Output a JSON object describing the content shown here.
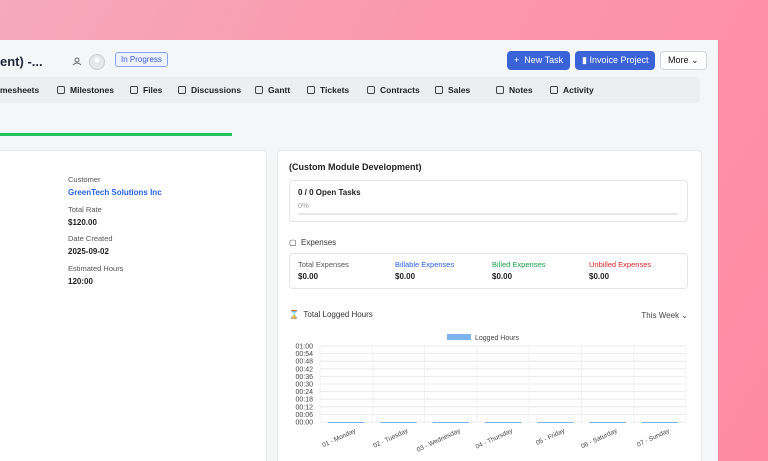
{
  "header": {
    "title": "ent) -...",
    "status": "In Progress",
    "buttons": [
      "New Task",
      "Invoice Project",
      "More"
    ]
  },
  "tabs": [
    "mesheets",
    "Milestones",
    "Files",
    "Discussions",
    "Gantt",
    "Tickets",
    "Contracts",
    "Sales",
    "Notes",
    "Activity"
  ],
  "project_info": {
    "fields": [
      {
        "label": "Customer",
        "value": "GreenTech Solutions Inc"
      },
      {
        "label": "Total Rate",
        "value": "$120.00"
      },
      {
        "label": "Date Created",
        "value": "2025-09-02"
      },
      {
        "label": "Estimated Hours",
        "value": "120:00"
      }
    ]
  },
  "overview": {
    "title": "(Custom Module Development)",
    "open_tasks": {
      "label": "0 / 0 Open Tasks",
      "percent": "0%"
    },
    "expenses": {
      "title": "Expenses",
      "items": [
        {
          "label": "Total Expenses",
          "value": "$0.00"
        },
        {
          "label": "Billable Expenses",
          "value": "$0.00"
        },
        {
          "label": "Billed Expenses",
          "value": "$0.00"
        },
        {
          "label": "Unbilled Expenses",
          "value": "$0.00"
        }
      ]
    },
    "logged_hours": {
      "title": "Total Logged Hours",
      "period": "This Week",
      "chart": {
        "type": "bar",
        "categories": [
          "01 - Monday",
          "02 - Tuesday",
          "03 - Wednesday",
          "04 - Thursday",
          "05 - Friday",
          "06 - Saturday",
          "07 - Sunday"
        ],
        "series": [
          {
            "name": "Logged Hours",
            "color": "#7cb5ec",
            "values": [
              0,
              0,
              0,
              0,
              0,
              0,
              0
            ]
          }
        ],
        "ylim": [
          0,
          1
        ],
        "yticks": [
          {
            "value": 0,
            "label": "00:00"
          },
          {
            "value": 0.1,
            "label": "00:06"
          },
          {
            "value": 0.2,
            "label": "00:12"
          },
          {
            "value": 0.3,
            "label": "00:18"
          },
          {
            "value": 0.4,
            "label": "00:24"
          },
          {
            "value": 0.5,
            "label": "00:30"
          },
          {
            "value": 0.6,
            "label": "00:36"
          },
          {
            "value": 0.7,
            "label": "00:42"
          },
          {
            "value": 0.8,
            "label": "00:48"
          },
          {
            "value": 0.9,
            "label": "00:54"
          },
          {
            "value": 1,
            "label": "01:00"
          }
        ],
        "grid": true
      }
    }
  }
}
